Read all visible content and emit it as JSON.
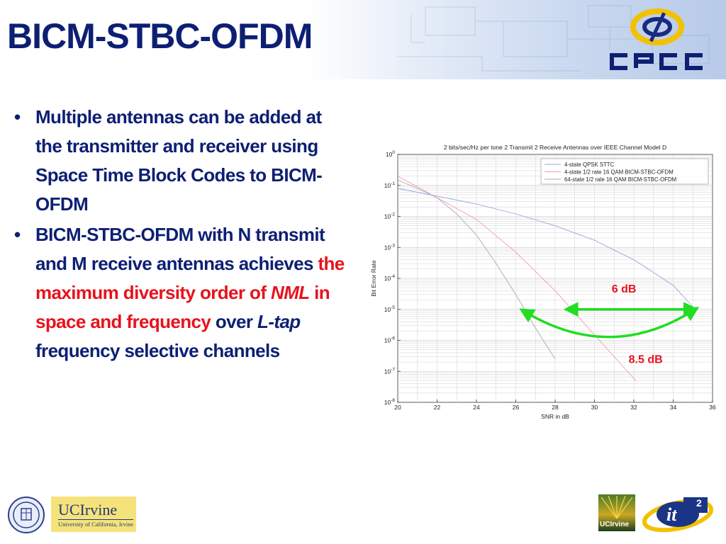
{
  "slide": {
    "title": "BICM-STBC-OFDM",
    "bullet1": "Multiple antennas can be added at the transmitter and receiver using Space Time Block Codes to BICM-OFDM",
    "bullet2": {
      "part1": "BICM-STBC-OFDM with N transmit and M receive antennas achieves ",
      "part2": "the maximum diversity order of ",
      "part3": "NML",
      "part4": " in space and frequency",
      "part5": " over ",
      "part6": "L-tap",
      "part7": " frequency selective channels"
    },
    "bullet_char": "•"
  },
  "logos": {
    "cpcc_text": "CPCC",
    "uci_main": "UCIrvine",
    "uci_sub": "University of California, Irvine",
    "uci_small": "UCIrvine",
    "it2": "it",
    "it2_sup": "2"
  },
  "colors": {
    "title": "#0d1f73",
    "highlight": "#e8121c",
    "annotation": "#22dd22",
    "logo_yellow": "#f2c200"
  },
  "chart_data": {
    "type": "line",
    "title": "2 bits/sec/Hz per tone 2 Transmit 2 Receive Antennas over IEEE Channel Model D",
    "xlabel": "SNR in dB",
    "ylabel": "Bit Error Rate",
    "xlim": [
      20,
      36
    ],
    "ylim_exp": [
      -8,
      0
    ],
    "yscale": "log",
    "grid": true,
    "legend_position": "top-right",
    "x_ticks": [
      20,
      22,
      24,
      26,
      28,
      30,
      32,
      34,
      36
    ],
    "y_ticks": [
      "10^0",
      "10^-1",
      "10^-2",
      "10^-3",
      "10^-4",
      "10^-5",
      "10^-6",
      "10^-7",
      "10^-8"
    ],
    "series": [
      {
        "name": "4-state QPSK STTC",
        "color": "#9aa6d8",
        "points": [
          [
            20,
            0.08
          ],
          [
            21,
            0.06
          ],
          [
            22,
            0.045
          ],
          [
            24,
            0.025
          ],
          [
            26,
            0.012
          ],
          [
            28,
            0.005
          ],
          [
            30,
            0.0017
          ],
          [
            32,
            0.0004
          ],
          [
            34,
            6e-05
          ],
          [
            35,
            1.2e-05
          ]
        ]
      },
      {
        "name": "4-state 1/2 rate 16 QAM BICM-STBC-OFDM",
        "color": "#f0a0a8",
        "points": [
          [
            20,
            0.2
          ],
          [
            21,
            0.09
          ],
          [
            22,
            0.04
          ],
          [
            24,
            0.008
          ],
          [
            26,
            0.0007
          ],
          [
            28,
            4e-05
          ],
          [
            30,
            1.5e-06
          ],
          [
            32.1,
            5e-08
          ]
        ]
      },
      {
        "name": "64-state 1/2 rate 16 QAM BICM-STBC-OFDM",
        "color": "#a8a8b8",
        "points": [
          [
            20,
            0.15
          ],
          [
            21,
            0.08
          ],
          [
            22,
            0.04
          ],
          [
            23,
            0.012
          ],
          [
            24,
            0.0025
          ],
          [
            25,
            0.0003
          ],
          [
            26,
            3e-05
          ],
          [
            27,
            2.5e-06
          ],
          [
            28,
            2.5e-07
          ]
        ]
      }
    ],
    "annotations": [
      {
        "text": "6 dB",
        "color": "#e8121c"
      },
      {
        "text": "8.5 dB",
        "color": "#e8121c"
      }
    ]
  }
}
